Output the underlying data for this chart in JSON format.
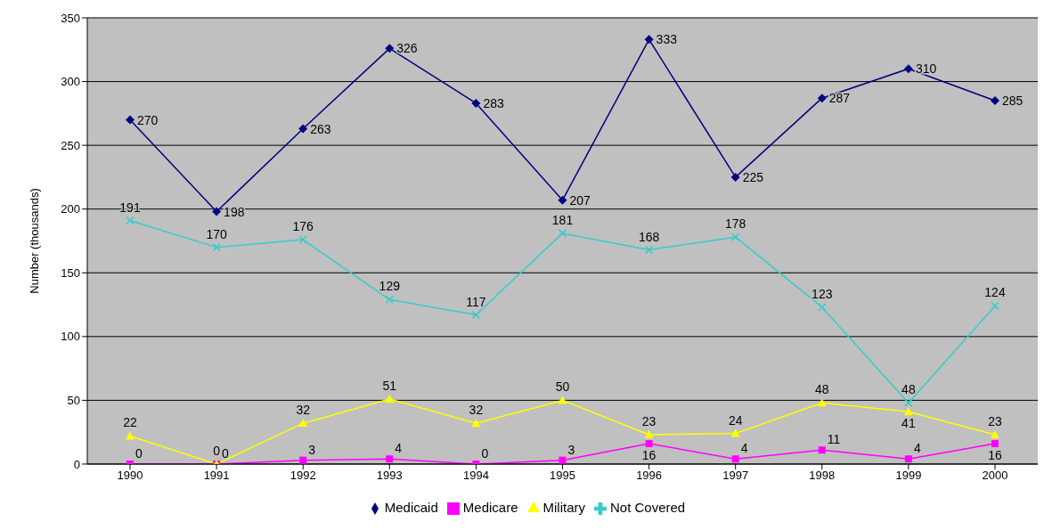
{
  "chart_data": {
    "type": "line",
    "ylabel": "Number (thousands)",
    "categories": [
      "1990",
      "1991",
      "1992",
      "1993",
      "1994",
      "1995",
      "1996",
      "1997",
      "1998",
      "1999",
      "2000"
    ],
    "series": [
      {
        "name": "Medicaid",
        "color": "#000080",
        "marker": "diamond",
        "values": [
          270,
          198,
          263,
          326,
          283,
          207,
          333,
          225,
          287,
          310,
          285
        ]
      },
      {
        "name": "Medicare",
        "color": "#ff00ff",
        "marker": "square",
        "values": [
          0,
          0,
          3,
          4,
          0,
          3,
          16,
          4,
          11,
          4,
          16
        ]
      },
      {
        "name": "Military",
        "color": "#ffff00",
        "marker": "triangle",
        "values": [
          22,
          0,
          32,
          51,
          32,
          50,
          23,
          24,
          48,
          41,
          23
        ]
      },
      {
        "name": "Not Covered",
        "color": "#33cccc",
        "marker": "cross",
        "values": [
          191,
          170,
          176,
          129,
          117,
          181,
          168,
          178,
          123,
          48,
          124
        ]
      }
    ],
    "ylim": [
      0,
      350
    ],
    "yticks": [
      0,
      50,
      100,
      150,
      200,
      250,
      300,
      350
    ],
    "grid": "y",
    "legend": "bottom",
    "data_labels": true
  }
}
